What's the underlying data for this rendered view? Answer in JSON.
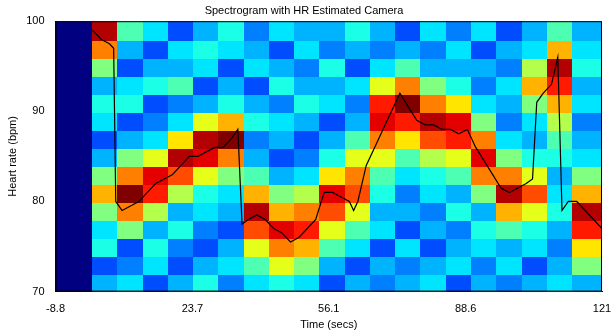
{
  "chart_data": {
    "type": "line",
    "title": "Spectrogram with HR Estimated Camera",
    "x_label": "Time (secs)",
    "y_label": "Heart rate (bpm)",
    "xlim": [
      -8.8,
      121
    ],
    "xticks": [
      -8.8,
      23.7,
      56.1,
      88.6,
      121
    ],
    "ylim": [
      70,
      100
    ],
    "yticks": [
      70,
      80,
      90,
      100
    ],
    "grid": false,
    "x": [
      0,
      2,
      4,
      5,
      5.5,
      7,
      9,
      11,
      13,
      15,
      17,
      19,
      21,
      23,
      25,
      27,
      29,
      31,
      33,
      34.5,
      35.5,
      37,
      39,
      41,
      43,
      45,
      47,
      49,
      51,
      53,
      55,
      57,
      59,
      61,
      62,
      63,
      65,
      67,
      69,
      71,
      73,
      75,
      77,
      79,
      81,
      83,
      85,
      87,
      89,
      91,
      93,
      95,
      97,
      99,
      101,
      103,
      104.5,
      105.5,
      107,
      109,
      110.5,
      111.5,
      113,
      115,
      117,
      119,
      121
    ],
    "series": [
      {
        "color": "#000000",
        "marker": "none",
        "line_style": "solid",
        "values": [
          99,
          98,
          97.5,
          97,
          80,
          79,
          79.5,
          80,
          81,
          82,
          82.5,
          83,
          84,
          85,
          85,
          85.5,
          86,
          86,
          87,
          88,
          77.5,
          78,
          78.5,
          78,
          77,
          76.5,
          75.5,
          76,
          77,
          78,
          81,
          81,
          80.5,
          80,
          79,
          80,
          84,
          86,
          88,
          90,
          92,
          90.5,
          89,
          88.5,
          88.5,
          88,
          88,
          87.5,
          88,
          86,
          84.5,
          83,
          81.5,
          81,
          81.5,
          82,
          82.5,
          91,
          92,
          93,
          96,
          79,
          80,
          80,
          79,
          78,
          77
        ]
      }
    ],
    "heatmap": {
      "x_edges": [
        -8.8,
        0,
        6,
        12,
        18,
        24,
        30,
        36,
        42,
        48,
        54,
        60,
        66,
        72,
        78,
        84,
        90,
        96,
        102,
        108,
        114,
        121
      ],
      "y_edges": [
        70,
        72,
        74,
        76,
        78,
        80,
        82,
        84,
        86,
        88,
        90,
        92,
        94,
        96,
        98,
        100
      ],
      "zlim": [
        0,
        1
      ],
      "z": [
        [
          0,
          0,
          0,
          0,
          0,
          0,
          0,
          0,
          0,
          0,
          0,
          0,
          0,
          0,
          0
        ],
        [
          0.3,
          0.2,
          0.4,
          0.35,
          0.5,
          0.7,
          0.5,
          0.3,
          0.2,
          0.35,
          0.4,
          0.3,
          0.5,
          0.75,
          0.95
        ],
        [
          0.35,
          0.25,
          0.2,
          0.5,
          0.75,
          1.0,
          0.75,
          0.5,
          0.3,
          0.2,
          0.4,
          0.35,
          0.2,
          0.3,
          0.45
        ],
        [
          0.2,
          0.35,
          0.4,
          0.3,
          0.55,
          0.85,
          0.9,
          0.6,
          0.35,
          0.25,
          0.2,
          0.4,
          0.3,
          0.2,
          0.35
        ],
        [
          0.3,
          0.2,
          0.25,
          0.4,
          0.3,
          0.55,
          0.8,
          0.95,
          0.65,
          0.35,
          0.25,
          0.45,
          0.3,
          0.35,
          0.2
        ],
        [
          0.4,
          0.3,
          0.2,
          0.25,
          0.35,
          0.4,
          0.6,
          0.9,
          0.95,
          0.6,
          0.3,
          0.2,
          0.35,
          0.4,
          0.3
        ],
        [
          0.25,
          0.35,
          0.3,
          0.2,
          0.3,
          0.35,
          0.5,
          0.75,
          1.0,
          0.7,
          0.4,
          0.3,
          0.2,
          0.35,
          0.4
        ],
        [
          0.35,
          0.45,
          0.6,
          0.8,
          0.95,
          0.7,
          0.45,
          0.3,
          0.25,
          0.4,
          0.3,
          0.2,
          0.35,
          0.3,
          0.25
        ],
        [
          0.4,
          0.6,
          0.75,
          0.9,
          0.7,
          0.5,
          0.3,
          0.2,
          0.3,
          0.35,
          0.25,
          0.4,
          0.3,
          0.2,
          0.35
        ],
        [
          0.35,
          0.5,
          0.7,
          0.85,
          0.75,
          0.55,
          0.35,
          0.25,
          0.2,
          0.3,
          0.4,
          0.3,
          0.25,
          0.35,
          0.3
        ],
        [
          0.2,
          0.3,
          0.45,
          0.6,
          0.8,
          0.9,
          0.65,
          0.4,
          0.3,
          0.2,
          0.35,
          0.3,
          0.4,
          0.25,
          0.3
        ],
        [
          0.3,
          0.2,
          0.35,
          0.45,
          0.6,
          0.8,
          0.75,
          0.6,
          0.45,
          0.3,
          0.25,
          0.35,
          0.2,
          0.3,
          0.4
        ],
        [
          0.25,
          0.3,
          0.2,
          0.35,
          0.3,
          0.4,
          0.45,
          0.6,
          0.75,
          0.9,
          0.85,
          0.6,
          0.35,
          0.25,
          0.3
        ],
        [
          0.3,
          0.25,
          0.35,
          0.2,
          0.3,
          0.25,
          0.35,
          0.45,
          0.65,
          0.85,
          1.0,
          0.75,
          0.45,
          0.3,
          0.2
        ],
        [
          0.35,
          0.3,
          0.2,
          0.3,
          0.25,
          0.35,
          0.4,
          0.55,
          0.8,
          0.95,
          0.75,
          0.5,
          0.3,
          0.25,
          0.35
        ],
        [
          0.2,
          0.35,
          0.3,
          0.25,
          0.4,
          0.3,
          0.45,
          0.6,
          0.85,
          0.9,
          0.65,
          0.4,
          0.3,
          0.35,
          0.25
        ],
        [
          0.3,
          0.25,
          0.35,
          0.4,
          0.3,
          0.5,
          0.75,
          0.9,
          0.75,
          0.5,
          0.35,
          0.25,
          0.3,
          0.2,
          0.35
        ],
        [
          0.25,
          0.35,
          0.3,
          0.45,
          0.7,
          0.95,
          0.75,
          0.5,
          0.35,
          0.25,
          0.3,
          0.35,
          0.25,
          0.3,
          0.2
        ],
        [
          0.3,
          0.2,
          0.35,
          0.4,
          0.6,
          0.8,
          0.6,
          0.4,
          0.3,
          0.35,
          0.5,
          0.7,
          0.55,
          0.35,
          0.3
        ],
        [
          0.35,
          0.3,
          0.25,
          0.3,
          0.4,
          0.35,
          0.3,
          0.4,
          0.45,
          0.55,
          0.7,
          0.85,
          0.95,
          0.7,
          0.45
        ],
        [
          0.3,
          0.5,
          0.65,
          0.85,
          0.95,
          0.7,
          0.5,
          0.35,
          0.3,
          0.25,
          0.35,
          0.3,
          0.4,
          0.35,
          0.3
        ]
      ]
    }
  }
}
